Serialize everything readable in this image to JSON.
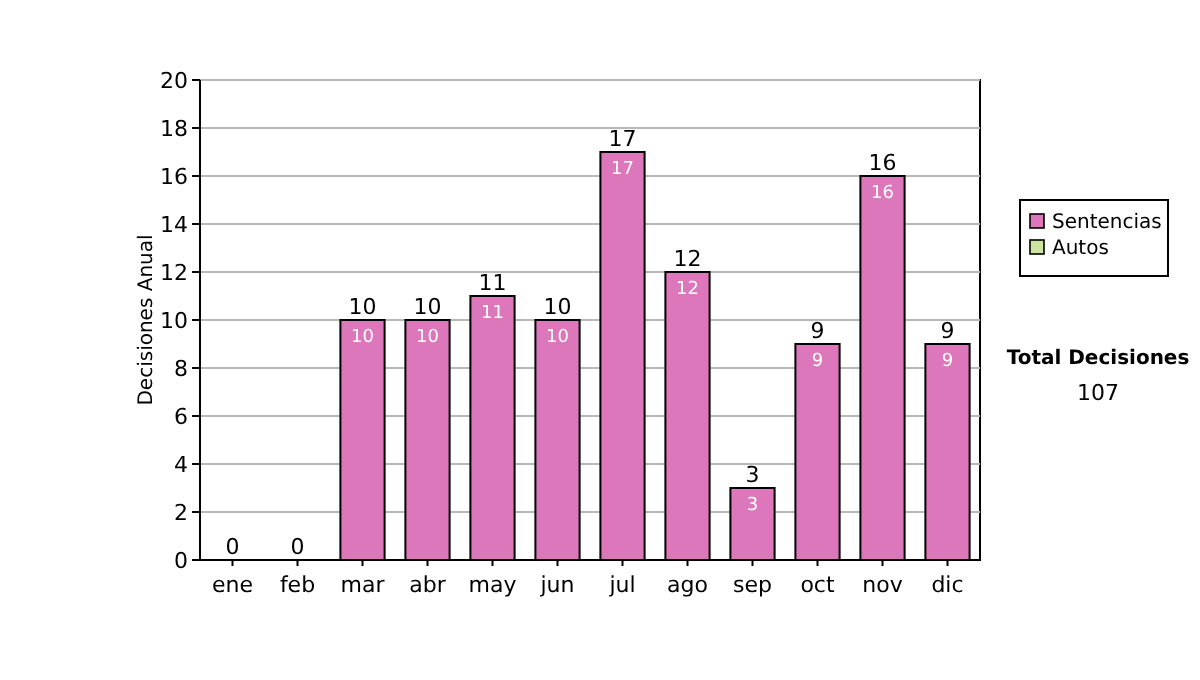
{
  "chart_data": {
    "type": "bar",
    "ylabel": "Decisiones Anual",
    "stacked": true,
    "categories": [
      "ene",
      "feb",
      "mar",
      "abr",
      "may",
      "jun",
      "jul",
      "ago",
      "sep",
      "oct",
      "nov",
      "dic"
    ],
    "series": [
      {
        "name": "Sentencias",
        "color": "#dd77bb",
        "values": [
          0,
          0,
          10,
          10,
          11,
          10,
          17,
          12,
          3,
          9,
          16,
          9
        ],
        "value_labels": [
          null,
          null,
          "10",
          "10",
          "11",
          "10",
          "17",
          "12",
          "3",
          "9",
          "16",
          "9"
        ]
      },
      {
        "name": "Autos",
        "color": "#cce6a0",
        "values": [
          null,
          null,
          null,
          null,
          null,
          null,
          null,
          null,
          null,
          null,
          null,
          null
        ]
      }
    ],
    "totals": [
      "0",
      "0",
      "10",
      "10",
      "11",
      "10",
      "17",
      "12",
      "3",
      "9",
      "16",
      "9"
    ],
    "ylim": [
      0,
      20
    ],
    "yticks": [
      0,
      2,
      4,
      6,
      8,
      10,
      12,
      14,
      16,
      18,
      20
    ],
    "grid": "y",
    "legend": "right",
    "annotations": [
      "Total Decisiones",
      "107"
    ]
  }
}
